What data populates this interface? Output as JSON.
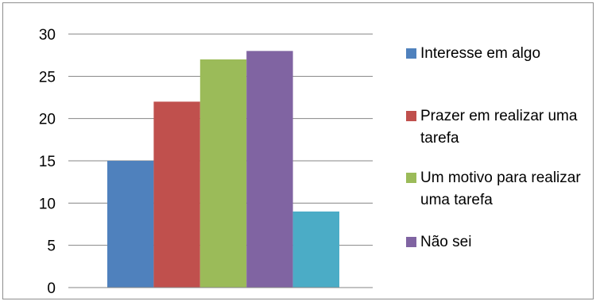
{
  "chart_data": {
    "type": "bar",
    "categories": [
      ""
    ],
    "series": [
      {
        "name": "Interesse em algo",
        "values": [
          15
        ],
        "color": "#4f81bd"
      },
      {
        "name": "Prazer em realizar uma tarefa",
        "values": [
          22
        ],
        "color": "#c0504d"
      },
      {
        "name": "Um motivo para realizar uma tarefa",
        "values": [
          27
        ],
        "color": "#9bbb59"
      },
      {
        "name": "Não sei",
        "values": [
          28
        ],
        "color": "#8064a2"
      },
      {
        "name": "",
        "values": [
          9
        ],
        "color": "#4bacc6"
      }
    ],
    "yticks": [
      "0",
      "5",
      "10",
      "15",
      "20",
      "25",
      "30"
    ],
    "ylim": [
      0,
      30
    ],
    "grid": true,
    "legend": "right",
    "title": "",
    "xlabel": "",
    "ylabel": ""
  }
}
